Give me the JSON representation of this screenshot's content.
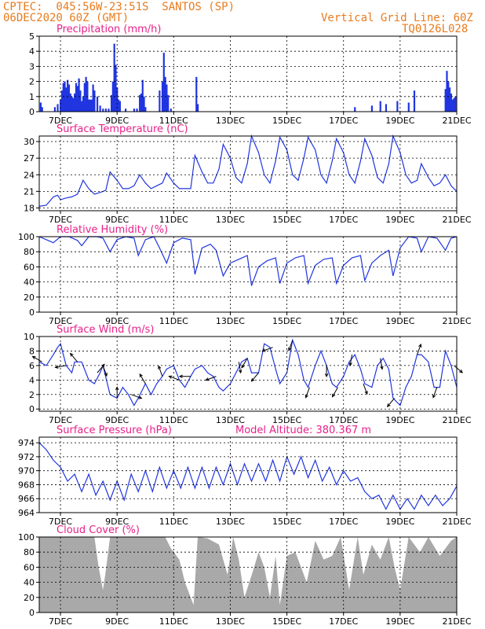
{
  "header": {
    "left_line1": "CPTEC:  045:56W-23:51S  SANTOS (SP)",
    "left_line2": "06DEC2020 60Z (GMT)",
    "right_line1": "Vertical Grid Line: 60Z",
    "right_line2": "TQ0126L028"
  },
  "colors": {
    "header": "#e87b1e",
    "title": "#e8208a",
    "line": "#2035e0",
    "bar": "#2035e0",
    "cloud": "#a9a9a9",
    "grid": "#000000"
  },
  "x_axis": {
    "ticks": [
      7,
      9,
      11,
      13,
      15,
      17,
      19,
      21
    ],
    "tick_labels": [
      "7DEC",
      "9DEC",
      "11DEC",
      "13DEC",
      "15DEC",
      "17DEC",
      "19DEC",
      "21DEC"
    ],
    "range": [
      6.25,
      21.0
    ]
  },
  "chart_data": [
    {
      "type": "bar",
      "title": "Precipitation (mm/h)",
      "ylim": [
        0,
        5
      ],
      "yticks": [
        0,
        1,
        2,
        3,
        4,
        5
      ],
      "x": [
        6.3,
        6.35,
        6.8,
        6.9,
        7.0,
        7.05,
        7.1,
        7.15,
        7.2,
        7.25,
        7.3,
        7.35,
        7.4,
        7.45,
        7.5,
        7.55,
        7.6,
        7.65,
        7.7,
        7.75,
        7.8,
        7.85,
        7.9,
        7.95,
        8.0,
        8.05,
        8.1,
        8.15,
        8.2,
        8.3,
        8.4,
        8.5,
        8.6,
        8.7,
        8.8,
        8.85,
        8.9,
        8.95,
        9.0,
        9.05,
        9.1,
        9.3,
        9.6,
        9.7,
        9.8,
        9.85,
        9.9,
        9.95,
        10.0,
        10.5,
        10.6,
        10.65,
        10.7,
        10.75,
        10.8,
        10.9,
        11.8,
        11.85,
        17.4,
        18.0,
        18.3,
        18.5,
        18.9,
        19.3,
        19.5,
        20.6,
        20.65,
        20.7,
        20.75,
        20.8,
        20.85,
        20.9,
        20.95
      ],
      "values": [
        0.6,
        0.3,
        0.3,
        0.5,
        0.8,
        1.4,
        1.9,
        2.0,
        1.6,
        2.1,
        1.8,
        1.2,
        1.0,
        0.9,
        1.2,
        1.9,
        1.7,
        2.2,
        1.4,
        0.7,
        1.0,
        1.9,
        2.3,
        2.0,
        0.8,
        0.8,
        0.8,
        1.8,
        1.4,
        1.0,
        0.4,
        0.2,
        0.2,
        0.2,
        1.1,
        2.0,
        4.5,
        3.1,
        1.6,
        0.8,
        0.7,
        0.2,
        0.2,
        0.2,
        1.1,
        1.2,
        2.1,
        1.0,
        0.3,
        1.4,
        2.0,
        3.9,
        2.3,
        1.8,
        1.1,
        0.2,
        2.3,
        0.5,
        0.3,
        0.4,
        0.7,
        0.5,
        0.7,
        0.6,
        1.4,
        1.5,
        2.7,
        2.0,
        1.6,
        1.2,
        0.8,
        0.9,
        1.0
      ]
    },
    {
      "type": "line",
      "title": "Surface Temperature (nC)",
      "ylim": [
        17.5,
        31.0
      ],
      "yticks": [
        18,
        21,
        24,
        27,
        30
      ],
      "x": [
        6.25,
        6.5,
        6.75,
        6.9,
        7.0,
        7.2,
        7.4,
        7.6,
        7.8,
        8.0,
        8.2,
        8.4,
        8.6,
        8.75,
        9.0,
        9.2,
        9.4,
        9.6,
        9.8,
        10.0,
        10.2,
        10.4,
        10.6,
        10.75,
        11.0,
        11.2,
        11.4,
        11.6,
        11.75,
        12.0,
        12.2,
        12.4,
        12.6,
        12.75,
        13.0,
        13.2,
        13.4,
        13.6,
        13.75,
        14.0,
        14.2,
        14.4,
        14.6,
        14.75,
        15.0,
        15.2,
        15.4,
        15.6,
        15.75,
        16.0,
        16.2,
        16.4,
        16.6,
        16.75,
        17.0,
        17.2,
        17.4,
        17.6,
        17.75,
        18.0,
        18.2,
        18.4,
        18.6,
        18.75,
        19.0,
        19.2,
        19.4,
        19.6,
        19.75,
        20.0,
        20.2,
        20.4,
        20.6,
        20.8,
        21.0
      ],
      "values": [
        18.3,
        18.5,
        20.0,
        20.3,
        19.5,
        19.8,
        20.0,
        20.5,
        23.0,
        21.5,
        20.5,
        20.8,
        21.2,
        24.5,
        23.0,
        21.5,
        21.5,
        22.0,
        24.0,
        22.5,
        21.5,
        22.0,
        22.5,
        24.3,
        22.5,
        21.5,
        21.5,
        21.5,
        27.5,
        24.5,
        22.5,
        22.5,
        25.0,
        29.5,
        27.0,
        23.5,
        22.5,
        26.0,
        31.0,
        28.0,
        24.0,
        22.5,
        26.5,
        30.8,
        28.5,
        24.0,
        23.0,
        27.0,
        30.8,
        28.5,
        24.0,
        22.5,
        26.5,
        30.5,
        28.0,
        24.0,
        22.5,
        26.5,
        30.5,
        27.5,
        23.5,
        22.5,
        26.0,
        31.0,
        28.0,
        24.0,
        22.5,
        23.0,
        26.0,
        23.5,
        22.0,
        22.5,
        24.0,
        22.0,
        21.0
      ]
    },
    {
      "type": "line",
      "title": "Relative Humidity (%)",
      "ylim": [
        0,
        100
      ],
      "yticks": [
        0,
        20,
        40,
        60,
        80,
        100
      ],
      "x": [
        6.25,
        6.5,
        6.75,
        7.0,
        7.3,
        7.6,
        7.75,
        8.0,
        8.3,
        8.5,
        8.75,
        9.0,
        9.3,
        9.6,
        9.75,
        10.0,
        10.3,
        10.5,
        10.75,
        11.0,
        11.3,
        11.6,
        11.75,
        12.0,
        12.3,
        12.5,
        12.75,
        13.0,
        13.3,
        13.6,
        13.75,
        14.0,
        14.3,
        14.6,
        14.75,
        15.0,
        15.3,
        15.6,
        15.75,
        16.0,
        16.3,
        16.6,
        16.75,
        17.0,
        17.3,
        17.6,
        17.75,
        18.0,
        18.3,
        18.6,
        18.75,
        19.0,
        19.3,
        19.6,
        19.75,
        20.0,
        20.3,
        20.6,
        20.8,
        21.0
      ],
      "values": [
        100,
        96,
        92,
        100,
        100,
        95,
        88,
        100,
        100,
        98,
        80,
        96,
        100,
        98,
        75,
        96,
        100,
        85,
        65,
        92,
        98,
        96,
        50,
        85,
        90,
        82,
        48,
        65,
        70,
        75,
        35,
        60,
        68,
        72,
        38,
        65,
        72,
        75,
        38,
        62,
        70,
        72,
        38,
        62,
        72,
        75,
        42,
        65,
        75,
        82,
        48,
        85,
        100,
        98,
        80,
        100,
        98,
        82,
        98,
        100
      ]
    },
    {
      "type": "line",
      "title": "Surface Wind (m/s)",
      "ylim": [
        -0.3,
        10.0
      ],
      "yticks": [
        0,
        2,
        4,
        6,
        8,
        10
      ],
      "x": [
        6.25,
        6.5,
        6.75,
        6.9,
        7.0,
        7.2,
        7.4,
        7.5,
        7.75,
        8.0,
        8.2,
        8.4,
        8.5,
        8.75,
        9.0,
        9.2,
        9.4,
        9.6,
        9.75,
        10.0,
        10.2,
        10.4,
        10.6,
        10.75,
        11.0,
        11.2,
        11.4,
        11.6,
        11.75,
        12.0,
        12.2,
        12.4,
        12.6,
        12.75,
        13.0,
        13.2,
        13.4,
        13.6,
        13.75,
        14.0,
        14.2,
        14.4,
        14.6,
        14.75,
        15.0,
        15.2,
        15.4,
        15.6,
        15.75,
        16.0,
        16.2,
        16.4,
        16.6,
        16.75,
        17.0,
        17.2,
        17.4,
        17.6,
        17.75,
        18.0,
        18.2,
        18.4,
        18.6,
        18.75,
        19.0,
        19.2,
        19.4,
        19.6,
        19.75,
        20.0,
        20.2,
        20.4,
        20.6,
        20.8,
        21.0
      ],
      "values": [
        6.5,
        6.0,
        7.5,
        8.5,
        9.0,
        6.0,
        5.0,
        6.5,
        6.5,
        4.0,
        3.5,
        5.0,
        6.0,
        2.0,
        1.5,
        3.0,
        2.0,
        0.5,
        1.5,
        3.5,
        2.0,
        3.5,
        4.5,
        5.5,
        6.0,
        4.0,
        3.0,
        4.5,
        5.5,
        6.0,
        5.0,
        4.5,
        3.0,
        2.5,
        3.5,
        5.0,
        6.5,
        7.0,
        5.0,
        5.0,
        9.0,
        8.5,
        5.5,
        3.5,
        5.0,
        9.5,
        7.5,
        4.0,
        3.0,
        6.0,
        8.0,
        6.0,
        3.5,
        3.0,
        4.5,
        6.5,
        7.5,
        5.5,
        3.5,
        3.0,
        6.0,
        7.0,
        5.5,
        1.5,
        0.5,
        3.0,
        4.5,
        7.5,
        7.5,
        6.5,
        3.0,
        3.0,
        8.0,
        6.0,
        3.0
      ],
      "arrows": [
        {
          "x": 6.35,
          "dir": 300
        },
        {
          "x": 7.2,
          "dir": 260
        },
        {
          "x": 7.6,
          "dir": 320
        },
        {
          "x": 8.3,
          "dir": 40
        },
        {
          "x": 8.5,
          "dir": 160
        },
        {
          "x": 9.0,
          "dir": 0
        },
        {
          "x": 9.5,
          "dir": 110
        },
        {
          "x": 10.0,
          "dir": 330
        },
        {
          "x": 10.6,
          "dir": 340
        },
        {
          "x": 11.2,
          "dir": 290
        },
        {
          "x": 11.6,
          "dir": 270
        },
        {
          "x": 12.5,
          "dir": 250
        },
        {
          "x": 13.3,
          "dir": 170
        },
        {
          "x": 13.6,
          "dir": 210
        },
        {
          "x": 14.0,
          "dir": 220
        },
        {
          "x": 14.5,
          "dir": 250
        },
        {
          "x": 15.2,
          "dir": 200
        },
        {
          "x": 15.8,
          "dir": 200
        },
        {
          "x": 16.4,
          "dir": 180
        },
        {
          "x": 16.8,
          "dir": 210
        },
        {
          "x": 17.3,
          "dir": 190
        },
        {
          "x": 17.7,
          "dir": 160
        },
        {
          "x": 18.3,
          "dir": 170
        },
        {
          "x": 18.8,
          "dir": 220
        },
        {
          "x": 19.6,
          "dir": 20
        },
        {
          "x": 20.3,
          "dir": 200
        },
        {
          "x": 20.9,
          "dir": 130
        }
      ]
    },
    {
      "type": "line",
      "title": "Surface Pressure (hPa)",
      "subtitle": "Model Altitude: 380.367 m",
      "ylim": [
        964,
        974.8
      ],
      "yticks": [
        964,
        966,
        968,
        970,
        972,
        974
      ],
      "x": [
        6.25,
        6.5,
        6.75,
        7.0,
        7.25,
        7.5,
        7.75,
        8.0,
        8.25,
        8.5,
        8.75,
        9.0,
        9.25,
        9.5,
        9.75,
        10.0,
        10.25,
        10.5,
        10.75,
        11.0,
        11.25,
        11.5,
        11.75,
        12.0,
        12.25,
        12.5,
        12.75,
        13.0,
        13.25,
        13.5,
        13.75,
        14.0,
        14.25,
        14.5,
        14.75,
        15.0,
        15.25,
        15.5,
        15.75,
        16.0,
        16.25,
        16.5,
        16.75,
        17.0,
        17.25,
        17.5,
        17.75,
        18.0,
        18.25,
        18.5,
        18.75,
        19.0,
        19.25,
        19.5,
        19.75,
        20.0,
        20.25,
        20.5,
        20.75,
        21.0
      ],
      "values": [
        974.0,
        973.0,
        971.5,
        970.5,
        968.5,
        969.5,
        967.0,
        969.5,
        966.5,
        968.5,
        965.8,
        968.5,
        965.8,
        969.5,
        967.0,
        970.0,
        967.0,
        970.5,
        967.5,
        970.0,
        967.5,
        970.5,
        967.5,
        970.5,
        967.5,
        970.5,
        968.0,
        971.0,
        968.0,
        971.0,
        968.5,
        971.0,
        968.5,
        971.5,
        968.5,
        972.0,
        969.5,
        972.0,
        969.0,
        971.5,
        968.5,
        970.5,
        968.0,
        970.0,
        968.5,
        969.0,
        967.0,
        966.0,
        966.5,
        964.5,
        966.5,
        964.5,
        966.0,
        964.5,
        966.5,
        965.0,
        966.5,
        965.0,
        966.0,
        967.8
      ]
    },
    {
      "type": "area",
      "title": "Cloud Cover (%)",
      "ylim": [
        0,
        100
      ],
      "yticks": [
        0,
        20,
        40,
        60,
        80,
        100
      ],
      "x": [
        6.25,
        8.2,
        8.35,
        8.5,
        8.6,
        8.75,
        9.0,
        10.7,
        10.9,
        11.2,
        11.4,
        11.7,
        11.85,
        12.2,
        12.6,
        12.9,
        13.1,
        13.3,
        13.5,
        13.8,
        14.0,
        14.2,
        14.4,
        14.6,
        14.75,
        15.0,
        15.3,
        15.7,
        16.0,
        16.3,
        16.6,
        16.9,
        17.2,
        17.5,
        17.7,
        18.0,
        18.3,
        18.6,
        18.8,
        19.0,
        19.3,
        19.7,
        20.0,
        20.4,
        20.8,
        21.0
      ],
      "values": [
        100,
        100,
        60,
        30,
        55,
        100,
        100,
        100,
        85,
        70,
        40,
        10,
        100,
        98,
        90,
        50,
        100,
        70,
        20,
        55,
        80,
        60,
        20,
        75,
        10,
        75,
        80,
        40,
        95,
        70,
        75,
        100,
        30,
        100,
        50,
        90,
        70,
        100,
        60,
        30,
        100,
        80,
        100,
        75,
        95,
        100
      ]
    }
  ]
}
